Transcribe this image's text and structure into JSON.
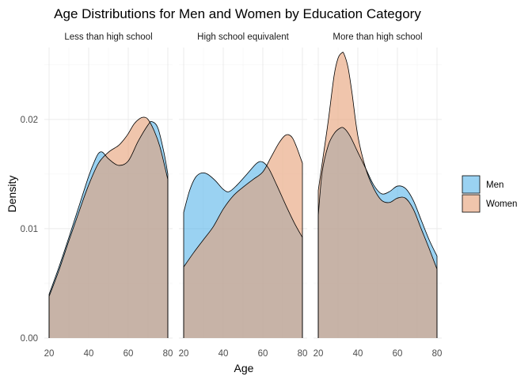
{
  "chart_data": {
    "type": "area",
    "subtype": "density",
    "title": "Age Distributions for Men and Women by Education Category",
    "xlabel": "Age",
    "ylabel": "Density",
    "xlim": [
      20,
      80
    ],
    "ylim": [
      0,
      0.026
    ],
    "x_ticks": [
      "20",
      "40",
      "60",
      "80"
    ],
    "x_tick_values": [
      20,
      40,
      60,
      80
    ],
    "y_ticks": [
      "0.00",
      "0.01",
      "0.02"
    ],
    "y_tick_values": [
      0,
      0.01,
      0.02
    ],
    "grid": true,
    "legend_position": "right",
    "legend": [
      {
        "name": "Men",
        "color": "#56B4E9"
      },
      {
        "name": "Women",
        "color": "#E69F75"
      }
    ],
    "facets": [
      {
        "label": "Less than high school",
        "x_range": [
          20,
          80
        ],
        "series": [
          {
            "name": "Men",
            "x": [
              20,
              25,
              30,
              35,
              40,
              43,
              45,
              47,
              50,
              55,
              60,
              65,
              70,
              72,
              75,
              78,
              80
            ],
            "y": [
              0.004,
              0.0065,
              0.0092,
              0.012,
              0.0148,
              0.0162,
              0.0169,
              0.017,
              0.0164,
              0.0158,
              0.0162,
              0.018,
              0.0195,
              0.0198,
              0.0192,
              0.017,
              0.015
            ]
          },
          {
            "name": "Women",
            "x": [
              20,
              25,
              30,
              35,
              40,
              45,
              50,
              55,
              58,
              60,
              63,
              66,
              68,
              70,
              73,
              76,
              80
            ],
            "y": [
              0.0038,
              0.0062,
              0.0089,
              0.0115,
              0.014,
              0.016,
              0.017,
              0.0176,
              0.0182,
              0.0187,
              0.0196,
              0.0201,
              0.0202,
              0.02,
              0.019,
              0.0175,
              0.0145
            ]
          }
        ]
      },
      {
        "label": "High school equivalent",
        "x_range": [
          20,
          80
        ],
        "series": [
          {
            "name": "Men",
            "x": [
              20,
              23,
              26,
              29,
              32,
              36,
              40,
              43,
              47,
              52,
              57,
              60,
              63,
              67,
              72,
              76,
              80
            ],
            "y": [
              0.0115,
              0.0135,
              0.0147,
              0.0151,
              0.015,
              0.0144,
              0.0136,
              0.0134,
              0.014,
              0.015,
              0.016,
              0.0161,
              0.0155,
              0.014,
              0.012,
              0.0105,
              0.0092
            ]
          },
          {
            "name": "Women",
            "x": [
              20,
              25,
              30,
              35,
              40,
              45,
              50,
              55,
              60,
              64,
              68,
              71,
              73,
              75,
              77,
              79,
              80
            ],
            "y": [
              0.0065,
              0.0078,
              0.009,
              0.0102,
              0.0118,
              0.013,
              0.0138,
              0.0145,
              0.0152,
              0.0165,
              0.0178,
              0.0185,
              0.0186,
              0.0183,
              0.0175,
              0.0165,
              0.016
            ]
          }
        ]
      },
      {
        "label": "More than high school",
        "x_range": [
          20,
          80
        ],
        "series": [
          {
            "name": "Men",
            "x": [
              20,
              22,
              25,
              28,
              31,
              33,
              36,
              40,
              44,
              48,
              52,
              56,
              60,
              64,
              68,
              72,
              76,
              80
            ],
            "y": [
              0.0112,
              0.0152,
              0.0176,
              0.0187,
              0.0192,
              0.0192,
              0.0185,
              0.017,
              0.0155,
              0.014,
              0.0132,
              0.0134,
              0.0139,
              0.0137,
              0.0126,
              0.0108,
              0.009,
              0.0075
            ]
          },
          {
            "name": "Women",
            "x": [
              20,
              22,
              25,
              28,
              30,
              32,
              33,
              35,
              37,
              40,
              44,
              48,
              52,
              56,
              60,
              64,
              68,
              72,
              76,
              80
            ],
            "y": [
              0.0135,
              0.016,
              0.0198,
              0.024,
              0.0256,
              0.0261,
              0.026,
              0.0248,
              0.0225,
              0.0185,
              0.0155,
              0.0137,
              0.0126,
              0.0124,
              0.0128,
              0.0128,
              0.0118,
              0.01,
              0.0082,
              0.0063
            ]
          }
        ]
      }
    ]
  }
}
